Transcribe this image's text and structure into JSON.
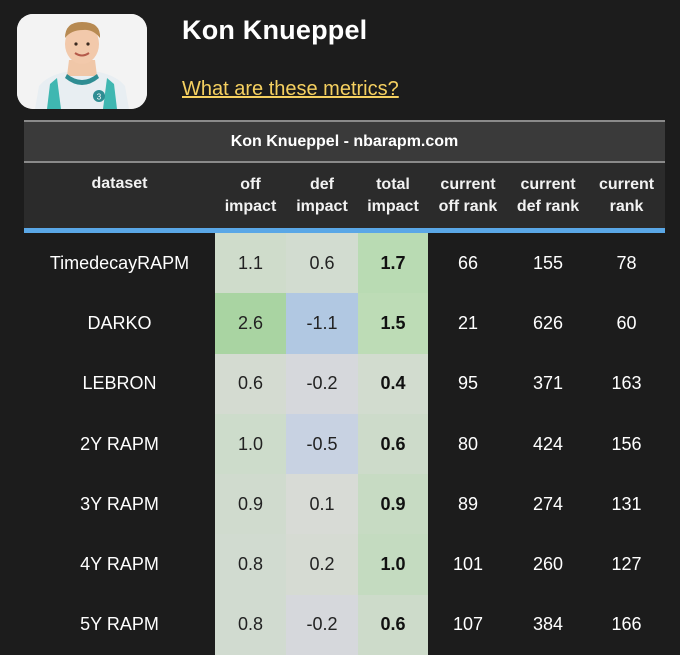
{
  "player": {
    "name": "Kon Knueppel",
    "metrics_link": "What are these metrics?",
    "jersey_number": "3"
  },
  "table": {
    "title": "Kon Knueppel - nbarapm.com",
    "headers": {
      "dataset": "dataset",
      "off_impact": [
        "off",
        "impact"
      ],
      "def_impact": [
        "def",
        "impact"
      ],
      "total_impact": [
        "total",
        "impact"
      ],
      "current_off_rank": [
        "current",
        "off rank"
      ],
      "current_def_rank": [
        "current",
        "def rank"
      ],
      "current_rank": [
        "current",
        "rank"
      ]
    },
    "rows": [
      {
        "dataset": "TimedecayRAPM",
        "off": "1.1",
        "def": "0.6",
        "total": "1.7",
        "off_rank": "66",
        "def_rank": "155",
        "rank": "78"
      },
      {
        "dataset": "DARKO",
        "off": "2.6",
        "def": "-1.1",
        "total": "1.5",
        "off_rank": "21",
        "def_rank": "626",
        "rank": "60"
      },
      {
        "dataset": "LEBRON",
        "off": "0.6",
        "def": "-0.2",
        "total": "0.4",
        "off_rank": "95",
        "def_rank": "371",
        "rank": "163"
      },
      {
        "dataset": "2Y RAPM",
        "off": "1.0",
        "def": "-0.5",
        "total": "0.6",
        "off_rank": "80",
        "def_rank": "424",
        "rank": "156"
      },
      {
        "dataset": "3Y RAPM",
        "off": "0.9",
        "def": "0.1",
        "total": "0.9",
        "off_rank": "89",
        "def_rank": "274",
        "rank": "131"
      },
      {
        "dataset": "4Y RAPM",
        "off": "0.8",
        "def": "0.2",
        "total": "1.0",
        "off_rank": "101",
        "def_rank": "260",
        "rank": "127"
      },
      {
        "dataset": "5Y RAPM",
        "off": "0.8",
        "def": "-0.2",
        "total": "0.6",
        "off_rank": "107",
        "def_rank": "384",
        "rank": "166"
      }
    ],
    "cell_colors": {
      "off": [
        "#cfdccb",
        "#a9d4a2",
        "#d4dbd1",
        "#cddccb",
        "#d0dbce",
        "#d1dbd0",
        "#d1dbd0"
      ],
      "def": [
        "#d2dcd0",
        "#b1c8e2",
        "#d6d8dc",
        "#c8d2e2",
        "#d8dbd6",
        "#d6dbd3",
        "#d6d8dc"
      ],
      "total": [
        "#b9dbb3",
        "#bddcb6",
        "#d2dccf",
        "#cddbca",
        "#c7dbc3",
        "#c4dbc0",
        "#cddbca"
      ]
    },
    "accent_color": "#5aa7e6"
  }
}
